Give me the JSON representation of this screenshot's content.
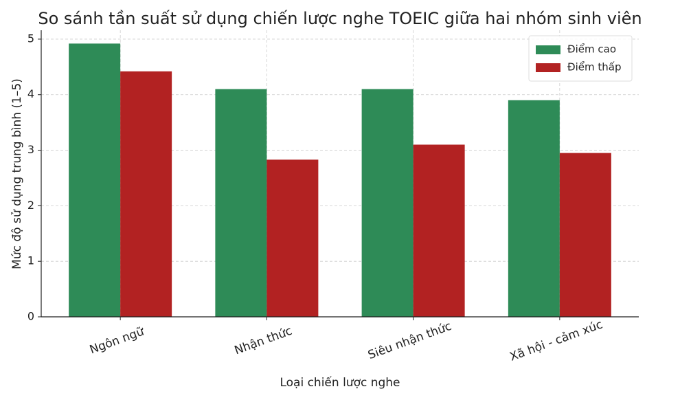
{
  "chart_data": {
    "type": "bar",
    "title": "So sánh tần suất sử dụng chiến lược nghe TOEIC giữa hai nhóm sinh viên",
    "x_label": "Loại chiến lược nghe",
    "y_label": "Mức độ sử dụng trung bình (1–5)",
    "categories": [
      "Ngôn ngữ",
      "Nhận thức",
      "Siêu nhận thức",
      "Xã hội - cảm xúc"
    ],
    "series": [
      {
        "name": "Điểm cao",
        "color": "#2e8b57",
        "values": [
          4.92,
          4.1,
          4.1,
          3.9
        ]
      },
      {
        "name": "Điểm thấp",
        "color": "#b22222",
        "values": [
          4.42,
          2.83,
          3.1,
          2.95
        ]
      }
    ],
    "ylim": [
      0,
      5.16
    ],
    "yticks": [
      0,
      1,
      2,
      3,
      4,
      5
    ],
    "grid": true,
    "legend": "upper-right"
  }
}
